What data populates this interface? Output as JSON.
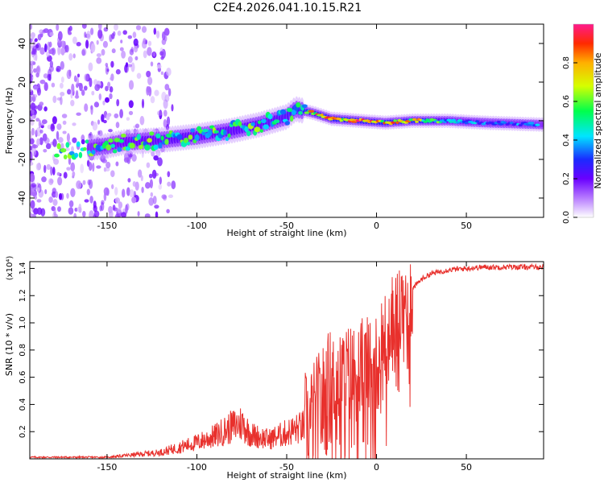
{
  "title": "C2E4.2026.041.10.15.R21",
  "chart_data": [
    {
      "type": "heatmap",
      "xlabel": "Height of straight line (km)",
      "ylabel": "Frequency (Hz)",
      "xlim": [
        -193,
        93
      ],
      "ylim": [
        -50,
        50
      ],
      "xticks": [
        -150,
        -100,
        -50,
        0,
        50
      ],
      "yticks": [
        -40,
        -20,
        0,
        20,
        40
      ],
      "colorbar": {
        "label": "Normalized spectral amplitude",
        "range": [
          0,
          1
        ],
        "ticks": [
          "0.0",
          "0.2",
          "0.4",
          "0.6",
          "0.8"
        ],
        "colors": [
          "#ffffff",
          "#b77bff",
          "#6a00ff",
          "#1a2bff",
          "#00e5ff",
          "#00ff4c",
          "#d6ff00",
          "#ffb000",
          "#ff2a00",
          "#ff1a8c"
        ]
      },
      "ridge": [
        {
          "x": -175,
          "freq": -16,
          "amp": 0.45
        },
        {
          "x": -150,
          "freq": -13,
          "amp": 0.5
        },
        {
          "x": -140,
          "freq": -11,
          "amp": 0.55
        },
        {
          "x": -120,
          "freq": -10,
          "amp": 0.6
        },
        {
          "x": -100,
          "freq": -8,
          "amp": 0.6
        },
        {
          "x": -80,
          "freq": -5,
          "amp": 0.6
        },
        {
          "x": -65,
          "freq": -2,
          "amp": 0.6
        },
        {
          "x": -50,
          "freq": 2,
          "amp": 0.65
        },
        {
          "x": -45,
          "freq": 6,
          "amp": 0.8
        },
        {
          "x": -35,
          "freq": 4,
          "amp": 0.95
        },
        {
          "x": -25,
          "freq": 1,
          "amp": 1.0
        },
        {
          "x": -10,
          "freq": 0,
          "amp": 1.0
        },
        {
          "x": 5,
          "freq": -1,
          "amp": 0.95
        },
        {
          "x": 20,
          "freq": 0,
          "amp": 0.9
        },
        {
          "x": 40,
          "freq": 0,
          "amp": 0.55
        },
        {
          "x": 60,
          "freq": -1,
          "amp": 0.45
        },
        {
          "x": 93,
          "freq": -2,
          "amp": 0.45
        }
      ]
    },
    {
      "type": "line",
      "xlabel": "Height of straight line (km)",
      "ylabel": "SNR (10 * v/v)",
      "yunit": "(x10⁴)",
      "xlim": [
        -193,
        93
      ],
      "ylim": [
        0,
        1.45
      ],
      "xticks": [
        -150,
        -100,
        -50,
        0,
        50
      ],
      "yticks": [
        0.2,
        0.4,
        0.6,
        0.8,
        1.0,
        1.2,
        1.4
      ],
      "color": "#e8302c",
      "series": [
        {
          "name": "SNR",
          "x": [
            -193,
            -170,
            -150,
            -130,
            -120,
            -110,
            -100,
            -90,
            -80,
            -75,
            -70,
            -60,
            -50,
            -40,
            -35,
            -30,
            -25,
            -20,
            -10,
            0,
            5,
            10,
            15,
            20,
            25,
            30,
            40,
            50,
            60,
            70,
            93
          ],
          "y": [
            0.01,
            0.01,
            0.01,
            0.03,
            0.04,
            0.07,
            0.1,
            0.14,
            0.2,
            0.22,
            0.15,
            0.12,
            0.16,
            0.2,
            0.28,
            0.4,
            0.55,
            0.6,
            0.65,
            0.72,
            0.9,
            1.0,
            1.15,
            1.25,
            1.32,
            1.36,
            1.39,
            1.4,
            1.41,
            1.41,
            1.41
          ]
        }
      ]
    }
  ]
}
